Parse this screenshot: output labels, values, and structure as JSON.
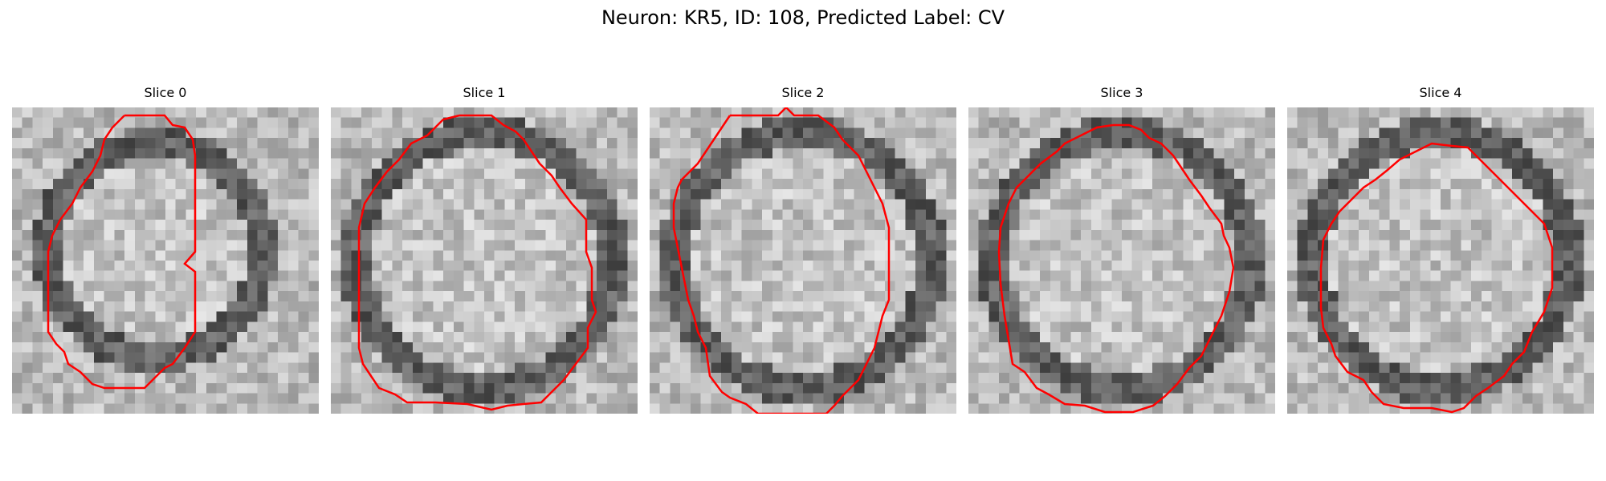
{
  "figure": {
    "title": "Neuron: KR5, ID: 108, Predicted Label: CV"
  },
  "panels": [
    {
      "title": "Slice 0"
    },
    {
      "title": "Slice 1"
    },
    {
      "title": "Slice 2"
    },
    {
      "title": "Slice 3"
    },
    {
      "title": "Slice 4"
    }
  ],
  "colors": {
    "contour": "#ff0000",
    "background": "#ffffff"
  }
}
